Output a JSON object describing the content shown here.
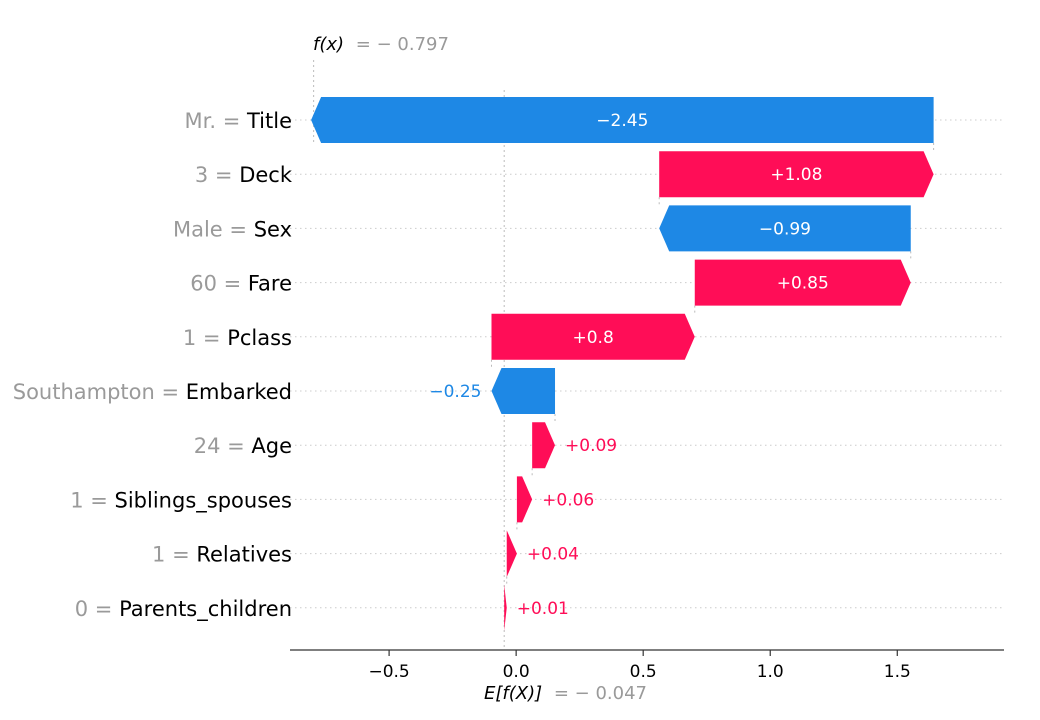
{
  "chart_data": {
    "type": "waterfall",
    "base_value_label": "E[f(X)]",
    "base_value_text": "= − 0.047",
    "base_value": -0.047,
    "output_value_label": "f(x)",
    "output_value_text": "= − 0.797",
    "output_value": -0.797,
    "xlim": [
      -0.89,
      1.92
    ],
    "x_ticks": [
      -0.5,
      0.0,
      0.5,
      1.0,
      1.5
    ],
    "x_tick_labels": [
      "−0.5",
      "0.0",
      "0.5",
      "1.0",
      "1.5"
    ],
    "features": [
      {
        "value": "Mr.",
        "name": "Title",
        "contribution": -2.45,
        "label": "−2.45"
      },
      {
        "value": "3",
        "name": "Deck",
        "contribution": 1.08,
        "label": "+1.08"
      },
      {
        "value": "Male",
        "name": "Sex",
        "contribution": -0.99,
        "label": "−0.99"
      },
      {
        "value": "60",
        "name": "Fare",
        "contribution": 0.85,
        "label": "+0.85"
      },
      {
        "value": "1",
        "name": "Pclass",
        "contribution": 0.8,
        "label": "+0.8"
      },
      {
        "value": "Southampton",
        "name": "Embarked",
        "contribution": -0.25,
        "label": "−0.25"
      },
      {
        "value": "24",
        "name": "Age",
        "contribution": 0.09,
        "label": "+0.09"
      },
      {
        "value": "1",
        "name": "Siblings_spouses",
        "contribution": 0.06,
        "label": "+0.06"
      },
      {
        "value": "1",
        "name": "Relatives",
        "contribution": 0.04,
        "label": "+0.04"
      },
      {
        "value": "0",
        "name": "Parents_children",
        "contribution": 0.01,
        "label": "+0.01"
      }
    ],
    "colors": {
      "positive": "#ff0d57",
      "negative": "#1e88e5"
    },
    "grid": false
  }
}
